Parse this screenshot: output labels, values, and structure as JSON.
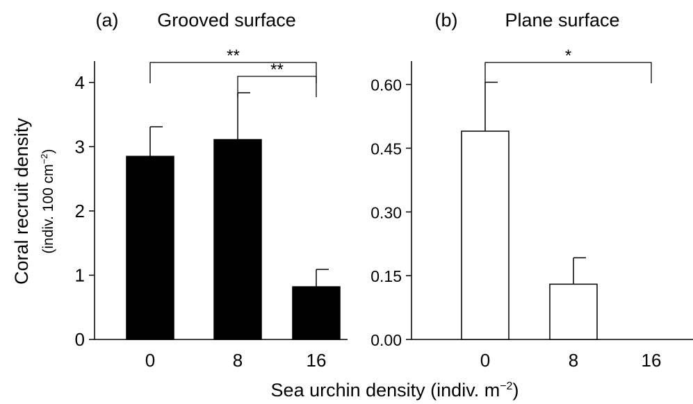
{
  "figure": {
    "xlabel": "Sea urchin density (indiv. m",
    "xlabel_sup": "−2",
    "xlabel_end": ")",
    "ylabel_line1": "Coral recruit density",
    "ylabel_line2": "(indiv. 100 cm",
    "ylabel_line2_sup": "−2",
    "ylabel_line2_end": ")"
  },
  "chart_data": [
    {
      "type": "bar",
      "panel_letter": "(a)",
      "title": "Grooved surface",
      "categories": [
        "0",
        "8",
        "16"
      ],
      "values": [
        2.85,
        3.11,
        0.82
      ],
      "errors": [
        0.46,
        0.73,
        0.27
      ],
      "ylim": [
        0,
        4.3
      ],
      "yticks": [
        0,
        1,
        2,
        3,
        4
      ],
      "ytick_labels": [
        "0",
        "1",
        "2",
        "3",
        "4"
      ],
      "bar_color": "#000000",
      "significance": [
        {
          "from": 0,
          "to": 2,
          "label": "**"
        },
        {
          "from": 1,
          "to": 2,
          "label": "**"
        }
      ]
    },
    {
      "type": "bar",
      "panel_letter": "(b)",
      "title": "Plane surface",
      "categories": [
        "0",
        "8",
        "16"
      ],
      "values": [
        0.49,
        0.13,
        0.0
      ],
      "errors": [
        0.115,
        0.062,
        0.0
      ],
      "ylim": [
        0,
        0.65
      ],
      "yticks": [
        0,
        0.15,
        0.3,
        0.45,
        0.6
      ],
      "ytick_labels": [
        "0.00",
        "0.15",
        "0.30",
        "0.45",
        "0.60"
      ],
      "bar_color": "#ffffff",
      "significance": [
        {
          "from": 0,
          "to": 2,
          "label": "*"
        }
      ]
    }
  ]
}
